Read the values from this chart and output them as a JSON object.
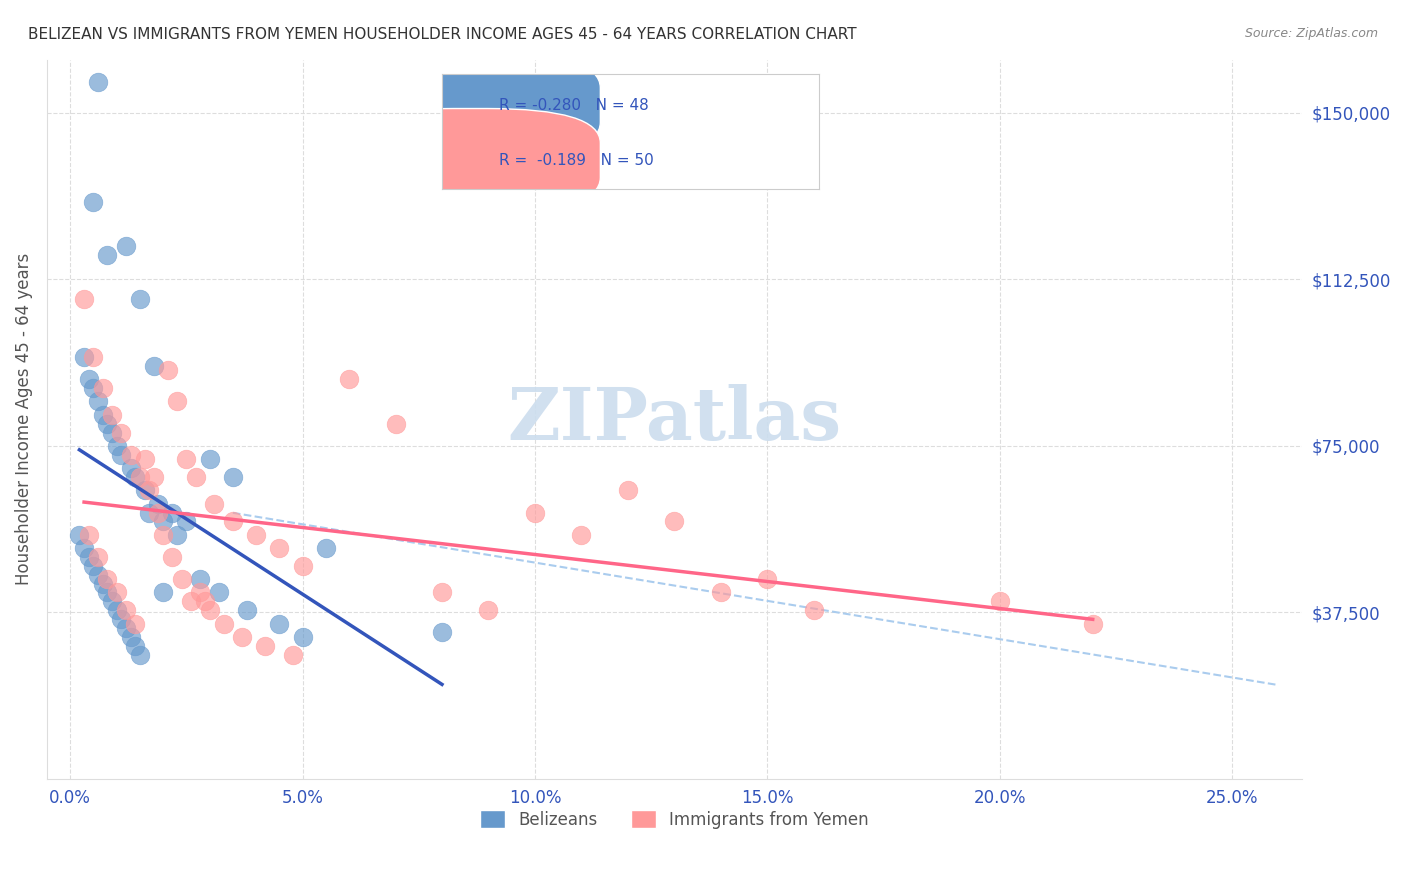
{
  "title": "BELIZEAN VS IMMIGRANTS FROM YEMEN HOUSEHOLDER INCOME AGES 45 - 64 YEARS CORRELATION CHART",
  "source": "Source: ZipAtlas.com",
  "xlabel_ticks": [
    "0.0%",
    "5.0%",
    "10.0%",
    "15.0%",
    "20.0%",
    "25.0%"
  ],
  "xlabel_vals": [
    0.0,
    5.0,
    10.0,
    15.0,
    20.0,
    25.0
  ],
  "ylabel_ticks": [
    "$37,500",
    "$75,000",
    "$112,500",
    "$150,000"
  ],
  "ylabel_vals": [
    37500,
    75000,
    112500,
    150000
  ],
  "ylim": [
    0,
    162000
  ],
  "xlim": [
    -0.5,
    26.5
  ],
  "ylabel": "Householder Income Ages 45 - 64 years",
  "legend_r_belizean": "R = -0.280",
  "legend_n_belizean": "N = 48",
  "legend_r_yemen": "R =  -0.189",
  "legend_n_yemen": "N = 50",
  "blue_color": "#6699CC",
  "pink_color": "#FF9999",
  "blue_line_color": "#3355BB",
  "pink_line_color": "#FF6688",
  "dashed_line_color": "#AACCEE",
  "watermark_color": "#CCDDEE",
  "background_color": "#FFFFFF",
  "grid_color": "#DDDDDD",
  "axis_label_color": "#3355BB",
  "title_color": "#333333",
  "source_color": "#888888",
  "legend_text_color": "#3355BB",
  "belizean_x": [
    0.5,
    0.8,
    1.2,
    1.5,
    1.8,
    0.3,
    0.4,
    0.5,
    0.6,
    0.7,
    0.8,
    0.9,
    1.0,
    1.1,
    1.3,
    1.4,
    1.6,
    1.9,
    2.2,
    2.5,
    3.0,
    3.5,
    0.2,
    0.3,
    0.4,
    0.5,
    0.6,
    0.7,
    0.8,
    0.9,
    1.0,
    1.1,
    1.2,
    1.3,
    1.4,
    1.5,
    1.7,
    2.0,
    2.3,
    2.8,
    3.2,
    3.8,
    4.5,
    5.0,
    5.5,
    8.0,
    0.6,
    2.0
  ],
  "belizean_y": [
    130000,
    118000,
    120000,
    108000,
    93000,
    95000,
    90000,
    88000,
    85000,
    82000,
    80000,
    78000,
    75000,
    73000,
    70000,
    68000,
    65000,
    62000,
    60000,
    58000,
    72000,
    68000,
    55000,
    52000,
    50000,
    48000,
    46000,
    44000,
    42000,
    40000,
    38000,
    36000,
    34000,
    32000,
    30000,
    28000,
    60000,
    58000,
    55000,
    45000,
    42000,
    38000,
    35000,
    32000,
    52000,
    33000,
    157000,
    42000
  ],
  "yemen_x": [
    0.3,
    0.5,
    0.7,
    0.9,
    1.1,
    1.3,
    1.5,
    1.7,
    1.9,
    2.1,
    2.3,
    2.5,
    2.7,
    2.9,
    3.1,
    3.5,
    4.0,
    4.5,
    5.0,
    6.0,
    7.0,
    8.0,
    9.0,
    10.0,
    11.0,
    12.0,
    13.0,
    14.0,
    15.0,
    16.0,
    0.4,
    0.6,
    0.8,
    1.0,
    1.2,
    1.4,
    1.6,
    1.8,
    2.0,
    2.2,
    2.4,
    2.6,
    2.8,
    3.0,
    3.3,
    3.7,
    4.2,
    4.8,
    20.0,
    22.0
  ],
  "yemen_y": [
    108000,
    95000,
    88000,
    82000,
    78000,
    73000,
    68000,
    65000,
    60000,
    92000,
    85000,
    72000,
    68000,
    40000,
    62000,
    58000,
    55000,
    52000,
    48000,
    90000,
    80000,
    42000,
    38000,
    60000,
    55000,
    65000,
    58000,
    42000,
    45000,
    38000,
    55000,
    50000,
    45000,
    42000,
    38000,
    35000,
    72000,
    68000,
    55000,
    50000,
    45000,
    40000,
    42000,
    38000,
    35000,
    32000,
    30000,
    28000,
    40000,
    35000
  ]
}
